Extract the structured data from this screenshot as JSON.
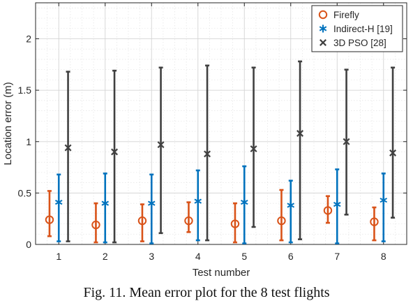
{
  "caption": "Fig. 11. Mean error plot for the 8 test flights",
  "chart_data": {
    "type": "errorbar",
    "xlabel": "Test number",
    "ylabel": "Location error (m)",
    "xlim": [
      0.5,
      8.5
    ],
    "ylim": [
      0,
      2.35
    ],
    "xticks": [
      1,
      2,
      3,
      4,
      5,
      6,
      7,
      8
    ],
    "yticks": [
      0,
      0.5,
      1,
      1.5,
      2
    ],
    "ytick_labels": [
      "0",
      "0.5",
      "1",
      "1.5",
      "2"
    ],
    "grid": true,
    "minor_grid": true,
    "legend_position": "top-right",
    "series": [
      {
        "name": "Firefly",
        "marker": "circle",
        "color": "#d95319",
        "x_offset": -0.2,
        "mean": [
          0.24,
          0.19,
          0.23,
          0.23,
          0.2,
          0.23,
          0.33,
          0.22
        ],
        "lower": [
          0.08,
          0.02,
          0.03,
          0.12,
          0.02,
          0.04,
          0.21,
          0.04
        ],
        "upper": [
          0.52,
          0.4,
          0.39,
          0.41,
          0.4,
          0.53,
          0.47,
          0.36
        ]
      },
      {
        "name": "Indirect-H [19]",
        "marker": "asterisk",
        "color": "#0072bd",
        "x_offset": 0,
        "mean": [
          0.41,
          0.4,
          0.4,
          0.42,
          0.41,
          0.38,
          0.39,
          0.43
        ],
        "lower": [
          0.03,
          0.02,
          0.01,
          0.04,
          0.01,
          0.02,
          0.01,
          0.03
        ],
        "upper": [
          0.68,
          0.69,
          0.68,
          0.72,
          0.76,
          0.62,
          0.73,
          0.69
        ]
      },
      {
        "name": "3D PSO [28]",
        "marker": "x",
        "color": "#404040",
        "x_offset": 0.2,
        "mean": [
          0.94,
          0.9,
          0.97,
          0.88,
          0.93,
          1.08,
          1.0,
          0.89
        ],
        "lower": [
          0.03,
          0.02,
          0.11,
          0.04,
          0.17,
          0.05,
          0.29,
          0.26
        ],
        "upper": [
          1.68,
          1.69,
          1.72,
          1.74,
          1.72,
          1.78,
          1.7,
          1.72
        ]
      }
    ]
  }
}
